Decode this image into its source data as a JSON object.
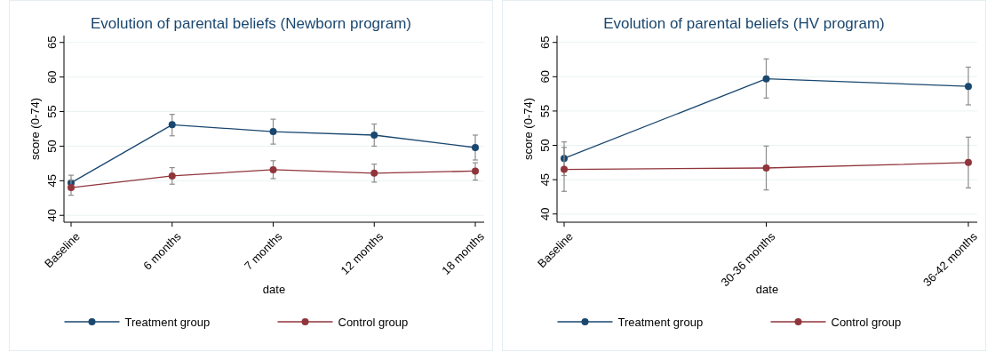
{
  "chart_data": [
    {
      "type": "line",
      "title": "Evolution of parental beliefs (Newborn program)",
      "xlabel": "date",
      "ylabel": "score (0-74)",
      "categories": [
        "Baseline",
        "6 months",
        "7 months",
        "12 months",
        "18 months"
      ],
      "ylim": [
        39,
        66
      ],
      "yticks": [
        40,
        45,
        50,
        55,
        60,
        65
      ],
      "grid": "y",
      "legend": "bottom",
      "marker": "circle",
      "series": [
        {
          "name": "Treatment group",
          "color": "#1a476f",
          "values": [
            44.7,
            53.1,
            52.1,
            51.6,
            49.8
          ],
          "errors": [
            [
              43.7,
              45.8
            ],
            [
              51.5,
              54.6
            ],
            [
              50.3,
              53.9
            ],
            [
              50.0,
              53.2
            ],
            [
              48.0,
              51.6
            ]
          ]
        },
        {
          "name": "Control group",
          "color": "#90353b",
          "values": [
            44.0,
            45.7,
            46.6,
            46.1,
            46.4
          ],
          "errors": [
            [
              42.9,
              45.1
            ],
            [
              44.5,
              46.9
            ],
            [
              45.3,
              47.9
            ],
            [
              44.8,
              47.4
            ],
            [
              45.1,
              47.6
            ]
          ]
        }
      ]
    },
    {
      "type": "line",
      "title": "Evolution of parental beliefs (HV program)",
      "xlabel": "date",
      "ylabel": "score (0-74)",
      "categories": [
        "Baseline",
        "30-36 months",
        "36-42 months"
      ],
      "ylim": [
        38.8,
        66
      ],
      "yticks": [
        40,
        45,
        50,
        55,
        60,
        65
      ],
      "grid": "y",
      "legend": "bottom",
      "marker": "circle",
      "series": [
        {
          "name": "Treatment group",
          "color": "#1a476f",
          "values": [
            48.1,
            59.7,
            58.6
          ],
          "errors": [
            [
              45.6,
              50.5
            ],
            [
              56.9,
              62.6
            ],
            [
              55.9,
              61.4
            ]
          ]
        },
        {
          "name": "Control group",
          "color": "#90353b",
          "values": [
            46.5,
            46.7,
            47.5
          ],
          "errors": [
            [
              43.3,
              49.7
            ],
            [
              43.5,
              49.9
            ],
            [
              43.8,
              51.2
            ]
          ]
        }
      ]
    }
  ]
}
